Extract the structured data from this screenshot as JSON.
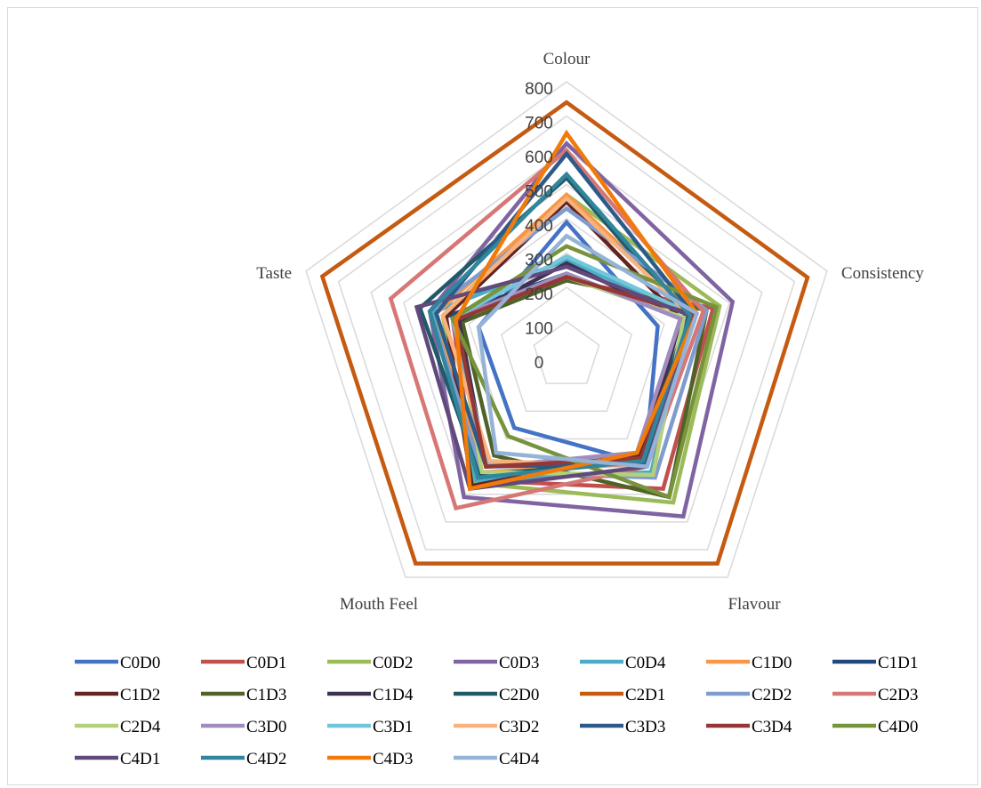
{
  "chart_data": {
    "type": "radar",
    "categories": [
      "Colour",
      "Consistency",
      "Flavour",
      "Mouth Feel",
      "Taste"
    ],
    "rlim": [
      0,
      800
    ],
    "ticks": [
      "0",
      "100",
      "200",
      "300",
      "400",
      "500",
      "600",
      "700",
      "800"
    ],
    "grid": true,
    "legend_position": "bottom",
    "series": [
      {
        "name": "C0D0",
        "color": "#4472C4",
        "values": [
          390,
          280,
          390,
          260,
          270
        ]
      },
      {
        "name": "C0D1",
        "color": "#C0504D",
        "values": [
          220,
          450,
          480,
          450,
          350
        ]
      },
      {
        "name": "C0D2",
        "color": "#9BBB59",
        "values": [
          470,
          470,
          530,
          460,
          380
        ]
      },
      {
        "name": "C0D3",
        "color": "#8064A2",
        "values": [
          620,
          510,
          580,
          510,
          420
        ]
      },
      {
        "name": "C0D4",
        "color": "#4BACC6",
        "values": [
          280,
          380,
          420,
          450,
          410
        ]
      },
      {
        "name": "C1D0",
        "color": "#F79646",
        "values": [
          470,
          390,
          390,
          420,
          400
        ]
      },
      {
        "name": "C1D1",
        "color": "#1F497D",
        "values": [
          240,
          350,
          350,
          470,
          370
        ]
      },
      {
        "name": "C1D2",
        "color": "#632423",
        "values": [
          450,
          350,
          360,
          470,
          370
        ]
      },
      {
        "name": "C1D3",
        "color": "#4F6228",
        "values": [
          220,
          430,
          510,
          360,
          320
        ]
      },
      {
        "name": "C1D4",
        "color": "#3F3151",
        "values": [
          270,
          350,
          380,
          400,
          330
        ]
      },
      {
        "name": "C2D0",
        "color": "#215967",
        "values": [
          520,
          370,
          380,
          430,
          450
        ]
      },
      {
        "name": "C2D1",
        "color": "#C55A11",
        "values": [
          740,
          740,
          750,
          750,
          750
        ]
      },
      {
        "name": "C2D2",
        "color": "#7F9CCC",
        "values": [
          430,
          430,
          440,
          420,
          420
        ]
      },
      {
        "name": "C2D3",
        "color": "#D77775",
        "values": [
          600,
          420,
          400,
          550,
          540
        ]
      },
      {
        "name": "C2D4",
        "color": "#B4D17A",
        "values": [
          230,
          360,
          430,
          420,
          340
        ]
      },
      {
        "name": "C3D0",
        "color": "#A08DBD",
        "values": [
          240,
          350,
          350,
          400,
          350
        ]
      },
      {
        "name": "C3D1",
        "color": "#72C6D9",
        "values": [
          290,
          390,
          390,
          390,
          350
        ]
      },
      {
        "name": "C3D2",
        "color": "#F9B27C",
        "values": [
          460,
          380,
          400,
          380,
          380
        ]
      },
      {
        "name": "C3D3",
        "color": "#2E5A8A",
        "values": [
          590,
          390,
          390,
          400,
          400
        ]
      },
      {
        "name": "C3D4",
        "color": "#953735",
        "values": [
          230,
          390,
          370,
          400,
          340
        ]
      },
      {
        "name": "C4D0",
        "color": "#77933C",
        "values": [
          320,
          460,
          510,
          290,
          350
        ]
      },
      {
        "name": "C4D1",
        "color": "#604A7B",
        "values": [
          260,
          380,
          400,
          480,
          460
        ]
      },
      {
        "name": "C4D2",
        "color": "#31859C",
        "values": [
          530,
          380,
          380,
          440,
          420
        ]
      },
      {
        "name": "C4D3",
        "color": "#F07B0A",
        "values": [
          650,
          400,
          350,
          480,
          340
        ]
      },
      {
        "name": "C4D4",
        "color": "#95B3D7",
        "values": [
          350,
          400,
          400,
          350,
          270
        ]
      }
    ]
  }
}
